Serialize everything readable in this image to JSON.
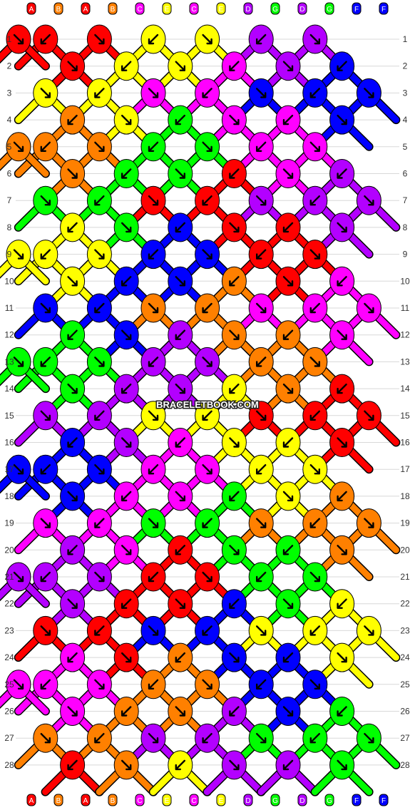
{
  "strand_labels_top": [
    "A",
    "B",
    "A",
    "B",
    "C",
    "E",
    "C",
    "E",
    "D",
    "G",
    "D",
    "G",
    "F",
    "F"
  ],
  "strand_labels_bottom": [
    "A",
    "B",
    "A",
    "B",
    "C",
    "E",
    "C",
    "E",
    "D",
    "G",
    "D",
    "G",
    "F",
    "F"
  ],
  "strand_colors": {
    "A": "#ff0000",
    "B": "#ff8000",
    "C": "#ff00ff",
    "D": "#b300ff",
    "E": "#ffff00",
    "F": "#0000ff",
    "G": "#00ff00"
  },
  "row_numbers": [
    "1",
    "2",
    "3",
    "4",
    "5",
    "6",
    "7",
    "8",
    "9",
    "10",
    "11",
    "12",
    "13",
    "14",
    "15",
    "16",
    "17",
    "18",
    "19",
    "20",
    "21",
    "22",
    "23",
    "24",
    "25",
    "26",
    "27",
    "28"
  ],
  "watermark": "BRACELETBOOK.COM"
}
